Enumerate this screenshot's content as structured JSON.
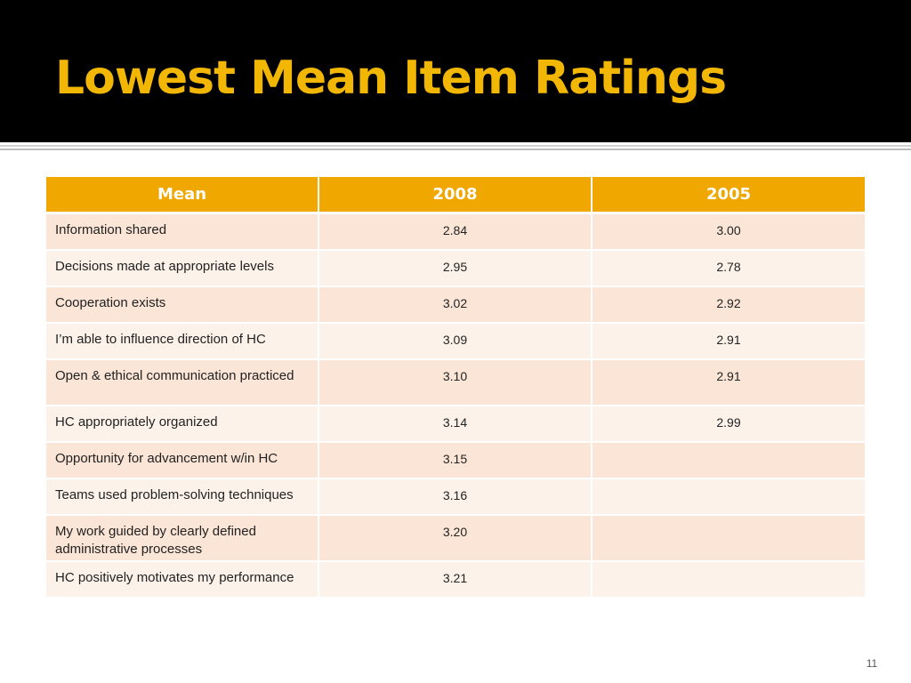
{
  "slide": {
    "title": "Lowest Mean Item Ratings",
    "page_number": "11"
  },
  "table": {
    "headers": [
      "Mean",
      "2008",
      "2005"
    ],
    "rows": [
      {
        "item": "Information shared",
        "y2008": "2.84",
        "y2005": "3.00"
      },
      {
        "item": "Decisions made at appropriate levels",
        "y2008": "2.95",
        "y2005": "2.78"
      },
      {
        "item": "Cooperation exists",
        "y2008": "3.02",
        "y2005": "2.92"
      },
      {
        "item": "I’m able to influence direction of HC",
        "y2008": "3.09",
        "y2005": "2.91"
      },
      {
        "item": "Open & ethical communication practiced",
        "y2008": "3.10",
        "y2005": "2.91"
      },
      {
        "item": "HC appropriately organized",
        "y2008": "3.14",
        "y2005": "2.99"
      },
      {
        "item": "Opportunity for advancement w/in HC",
        "y2008": "3.15",
        "y2005": ""
      },
      {
        "item": "Teams used problem-solving techniques",
        "y2008": "3.16",
        "y2005": ""
      },
      {
        "item": "My work guided by clearly defined administrative processes",
        "y2008": "3.20",
        "y2005": ""
      },
      {
        "item": "HC positively motivates my performance",
        "y2008": "3.21",
        "y2005": ""
      }
    ]
  },
  "colors": {
    "title_bar": "#000000",
    "title_text": "#f2b705",
    "header_fill": "#f0a700",
    "row_odd": "#fbe5d6",
    "row_even": "#fdf2ea"
  }
}
